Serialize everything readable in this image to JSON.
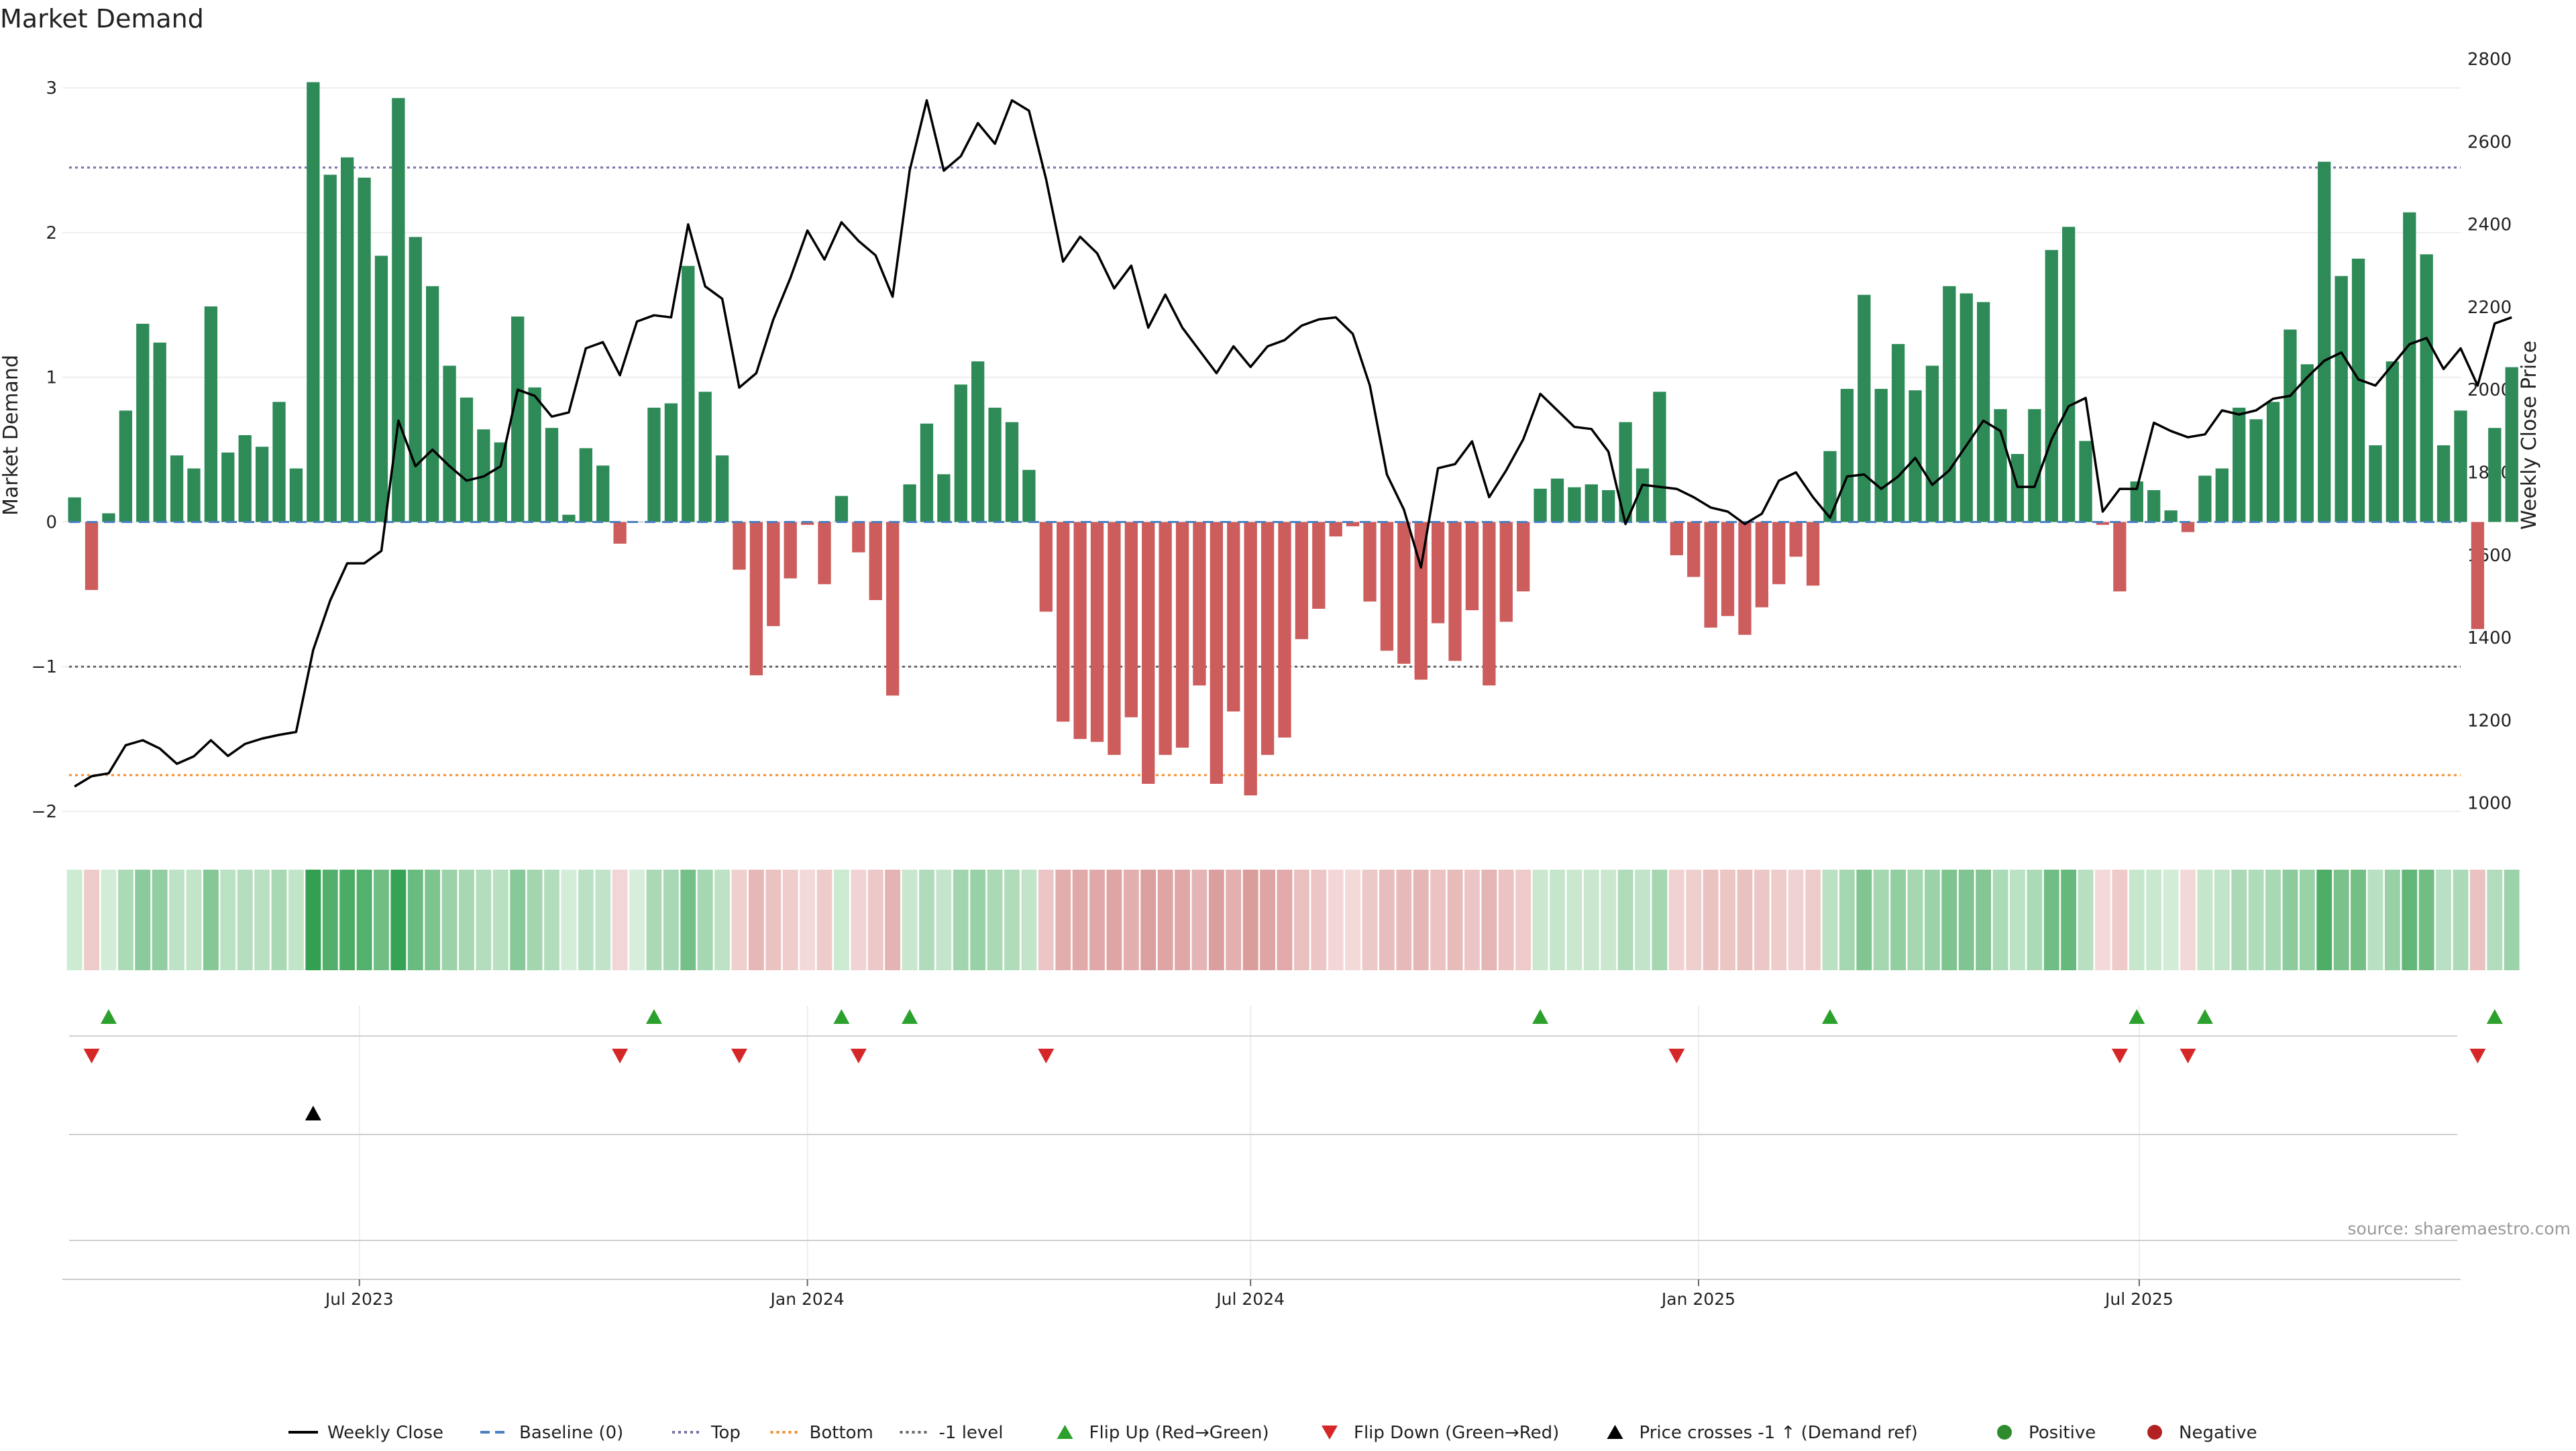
{
  "chart_data": {
    "type": "bar",
    "title": "Market Demand",
    "source": "source: sharemaestro.com",
    "ylabel_left": "Market Demand",
    "ylabel_right": "Weekly Close Price",
    "ylim_left": [
      -2.0,
      3.2
    ],
    "yticks_left": [
      3,
      2,
      1,
      0,
      -1,
      -2
    ],
    "ytick_labels_left": [
      "3",
      "2",
      "1",
      "0",
      "−1",
      "−2"
    ],
    "ylim_right": [
      980,
      2800
    ],
    "yticks_right": [
      2800,
      2600,
      2400,
      2200,
      2000,
      1800,
      1600,
      1400,
      1200,
      1000
    ],
    "x_start": "2023-03-06",
    "x_end": "2025-11-03",
    "x_range": [
      "2023-03-01",
      "2025-11-10"
    ],
    "xticks": [
      "2023-07-01",
      "2024-01-01",
      "2024-07-01",
      "2025-01-01",
      "2025-07-01"
    ],
    "xtick_labels": [
      "Jul 2023",
      "Jan 2024",
      "Jul 2024",
      "Jan 2025",
      "Jul 2025"
    ],
    "reference_lines": [
      {
        "name": "Top",
        "value": 2.45,
        "color": "#7b6fa8",
        "style": "dotted"
      },
      {
        "name": "Bottom",
        "value": -1.75,
        "color": "#f28e2b",
        "style": "dotted"
      },
      {
        "name": "-1 level",
        "value": -1.0,
        "color": "#666666",
        "style": "dotted"
      },
      {
        "name": "Baseline (0)",
        "value": 0,
        "color": "#4a7fc1",
        "style": "dashed"
      }
    ],
    "colors": {
      "positive": "#2e8b57",
      "negative": "#cd5c5c",
      "price": "#000000",
      "flip_up": "#2ca02c",
      "flip_down": "#d62728"
    },
    "demand": [
      0.17,
      -0.47,
      0.06,
      0.77,
      1.37,
      1.24,
      0.46,
      0.37,
      1.49,
      0.48,
      0.6,
      0.52,
      0.83,
      0.37,
      3.04,
      2.4,
      2.52,
      2.38,
      1.84,
      2.93,
      1.97,
      1.63,
      1.08,
      0.86,
      0.64,
      0.55,
      1.42,
      0.93,
      0.65,
      0.05,
      0.51,
      0.39,
      -0.15,
      0.0,
      0.79,
      0.82,
      1.77,
      0.9,
      0.46,
      -0.33,
      -1.06,
      -0.72,
      -0.39,
      -0.02,
      -0.43,
      0.18,
      -0.21,
      -0.54,
      -1.2,
      0.26,
      0.68,
      0.33,
      0.95,
      1.11,
      0.79,
      0.69,
      0.36,
      -0.62,
      -1.38,
      -1.5,
      -1.52,
      -1.61,
      -1.35,
      -1.81,
      -1.61,
      -1.56,
      -1.13,
      -1.81,
      -1.31,
      -1.89,
      -1.61,
      -1.49,
      -0.81,
      -0.6,
      -0.1,
      -0.03,
      -0.55,
      -0.89,
      -0.98,
      -1.09,
      -0.7,
      -0.96,
      -0.61,
      -1.13,
      -0.69,
      -0.48,
      0.23,
      0.3,
      0.24,
      0.26,
      0.22,
      0.69,
      0.37,
      0.9,
      -0.23,
      -0.38,
      -0.73,
      -0.65,
      -0.78,
      -0.59,
      -0.43,
      -0.24,
      -0.44,
      0.49,
      0.92,
      1.57,
      0.92,
      1.23,
      0.91,
      1.08,
      1.63,
      1.58,
      1.52,
      0.78,
      0.47,
      0.78,
      1.88,
      2.04,
      0.56,
      -0.02,
      -0.48,
      0.28,
      0.22,
      0.08,
      -0.07,
      0.32,
      0.37,
      0.79,
      0.71,
      0.83,
      1.33,
      1.09,
      2.49,
      1.7,
      1.82,
      0.53,
      1.11,
      2.14,
      1.85,
      0.53,
      0.77,
      -0.74,
      0.65,
      1.07
    ],
    "price": [
      1040,
      1065,
      1072,
      1140,
      1152,
      1132,
      1095,
      1113,
      1152,
      1114,
      1143,
      1156,
      1165,
      1172,
      1370,
      1490,
      1580,
      1580,
      1610,
      1925,
      1815,
      1855,
      1815,
      1780,
      1790,
      1815,
      2000,
      1985,
      1935,
      1945,
      2100,
      2115,
      2035,
      2165,
      2180,
      2175,
      2400,
      2250,
      2220,
      2005,
      2040,
      2170,
      2270,
      2385,
      2315,
      2405,
      2360,
      2325,
      2225,
      2530,
      2700,
      2530,
      2565,
      2645,
      2595,
      2700,
      2675,
      2510,
      2310,
      2370,
      2330,
      2245,
      2300,
      2150,
      2230,
      2150,
      2095,
      2040,
      2105,
      2055,
      2105,
      2120,
      2155,
      2170,
      2175,
      2135,
      2010,
      1795,
      1710,
      1570,
      1810,
      1820,
      1875,
      1740,
      1805,
      1880,
      1990,
      1950,
      1910,
      1905,
      1850,
      1675,
      1770,
      1765,
      1760,
      1740,
      1715,
      1705,
      1675,
      1700,
      1780,
      1800,
      1740,
      1690,
      1790,
      1795,
      1760,
      1790,
      1835,
      1770,
      1805,
      1865,
      1925,
      1900,
      1765,
      1765,
      1880,
      1960,
      1980,
      1705,
      1760,
      1760,
      1920,
      1900,
      1885,
      1892,
      1950,
      1940,
      1950,
      1978,
      1985,
      2030,
      2070,
      2090,
      2025,
      2010,
      2060,
      2110,
      2125,
      2050,
      2100,
      2010,
      2160,
      2175
    ],
    "flip_up_weeks": [
      2,
      34,
      45,
      49,
      86,
      103,
      121,
      125,
      142
    ],
    "flip_down_weeks": [
      1,
      32,
      39,
      46,
      57,
      94,
      120,
      124,
      141
    ],
    "price_cross_weeks": [
      14
    ],
    "legend": [
      {
        "label": "Weekly Close",
        "marker": "line",
        "color": "#000000"
      },
      {
        "label": "Baseline (0)",
        "marker": "dashed",
        "color": "#4a7fc1"
      },
      {
        "label": "Top",
        "marker": "dotted",
        "color": "#7b6fa8"
      },
      {
        "label": "Bottom",
        "marker": "dotted",
        "color": "#f28e2b"
      },
      {
        "label": "-1 level",
        "marker": "dotted",
        "color": "#666666"
      },
      {
        "label": "Flip Up (Red→Green)",
        "marker": "triangle-up",
        "color": "#2ca02c"
      },
      {
        "label": "Flip Down (Green→Red)",
        "marker": "triangle-down",
        "color": "#d62728"
      },
      {
        "label": "Price crosses -1 ↑ (Demand ref)",
        "marker": "triangle-up",
        "color": "#000000"
      },
      {
        "label": "Positive",
        "marker": "circle",
        "color": "#2e8b2e"
      },
      {
        "label": "Negative",
        "marker": "circle",
        "color": "#b22222"
      }
    ]
  }
}
